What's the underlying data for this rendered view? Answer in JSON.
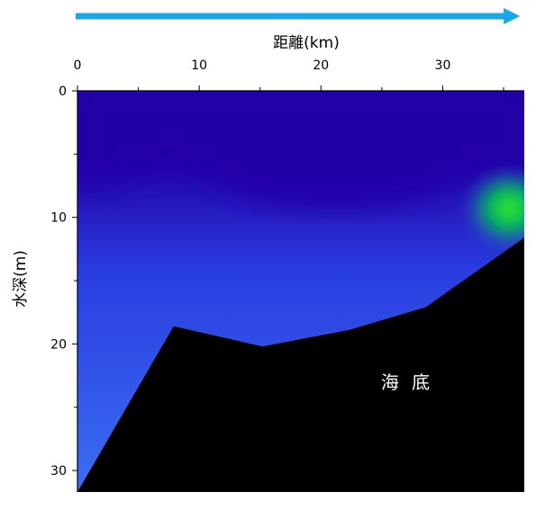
{
  "chart_data": {
    "type": "heatmap",
    "title": "",
    "xlabel": "距離(km)",
    "ylabel": "水深(m)",
    "xlim": [
      0,
      36.7
    ],
    "ylim": [
      31.7,
      0
    ],
    "x_axis_position": "top",
    "y_axis_inverted": true,
    "x_ticks": [
      0,
      10,
      20,
      30
    ],
    "x_tick_labels": [
      "0",
      "10",
      "20",
      "30"
    ],
    "y_ticks": [
      0,
      10,
      20,
      30
    ],
    "y_tick_labels": [
      "0",
      "10",
      "20",
      "30"
    ],
    "direction_arrow": "left-to-right",
    "seabed_profile": {
      "x": [
        0,
        7.9,
        15.2,
        22.3,
        28.6,
        36.7
      ],
      "depth": [
        31.7,
        18.6,
        20.2,
        18.9,
        17.1,
        11.6
      ]
    },
    "seabed_label": "海 底",
    "annotations": [],
    "grid": false,
    "legend": "none",
    "colors": {
      "water_top": "#2200a8",
      "water_mid": "#2a3de0",
      "water_low": "#3a6ef2",
      "highlight": "#33ee22",
      "highlight_edge": "#00aa66",
      "seabed": "#000000",
      "arrow": "#1aa7e8"
    }
  }
}
